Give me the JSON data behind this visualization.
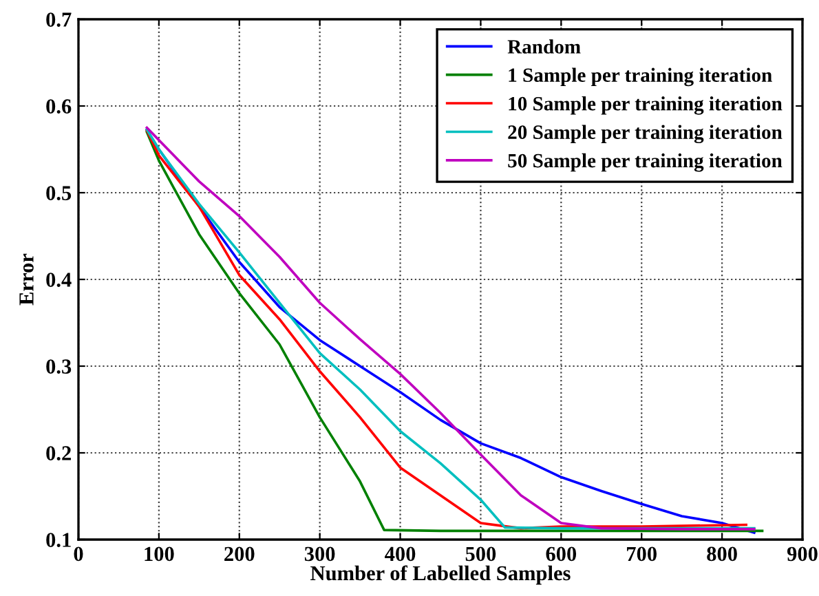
{
  "chart_data": {
    "type": "line",
    "xlabel": "Number of Labelled Samples",
    "ylabel": "Error",
    "xlim": [
      0,
      900
    ],
    "xticks": [
      0,
      100,
      200,
      300,
      400,
      500,
      600,
      700,
      800,
      900
    ],
    "ylim": [
      0.1,
      0.7
    ],
    "yticks": [
      0.1,
      0.2,
      0.3,
      0.4,
      0.5,
      0.6,
      0.7
    ],
    "grid": true,
    "legend": "top right",
    "line_style": "solid",
    "marker": "none",
    "series": [
      {
        "name": "Random",
        "color": "#0000ff",
        "x": [
          85,
          100,
          150,
          200,
          250,
          300,
          350,
          400,
          450,
          500,
          550,
          600,
          650,
          700,
          750,
          800,
          840
        ],
        "values": [
          0.572,
          0.55,
          0.484,
          0.42,
          0.368,
          0.33,
          0.3,
          0.27,
          0.238,
          0.211,
          0.194,
          0.172,
          0.156,
          0.141,
          0.127,
          0.119,
          0.108
        ]
      },
      {
        "name": "1 Sample per training iteration",
        "color": "#008000",
        "x": [
          85,
          100,
          150,
          200,
          250,
          300,
          350,
          380,
          450,
          550,
          650,
          750,
          850
        ],
        "values": [
          0.57,
          0.537,
          0.452,
          0.384,
          0.325,
          0.241,
          0.167,
          0.111,
          0.11,
          0.11,
          0.11,
          0.11,
          0.11
        ]
      },
      {
        "name": "10 Sample per training iteration",
        "color": "#ff0000",
        "x": [
          85,
          100,
          150,
          200,
          250,
          300,
          350,
          400,
          450,
          500,
          550,
          600,
          700,
          830
        ],
        "values": [
          0.572,
          0.543,
          0.484,
          0.405,
          0.354,
          0.294,
          0.241,
          0.183,
          0.151,
          0.119,
          0.113,
          0.115,
          0.115,
          0.117
        ]
      },
      {
        "name": "20 Sample per training iteration",
        "color": "#00bfbf",
        "x": [
          85,
          100,
          150,
          200,
          250,
          300,
          350,
          400,
          450,
          500,
          530,
          600,
          700,
          840
        ],
        "values": [
          0.573,
          0.55,
          0.487,
          0.431,
          0.373,
          0.315,
          0.273,
          0.225,
          0.188,
          0.146,
          0.114,
          0.113,
          0.113,
          0.113
        ]
      },
      {
        "name": "50 Sample per training iteration",
        "color": "#bf00bf",
        "x": [
          85,
          150,
          200,
          250,
          300,
          350,
          400,
          450,
          500,
          550,
          600,
          650,
          750,
          840
        ],
        "values": [
          0.575,
          0.513,
          0.473,
          0.426,
          0.373,
          0.331,
          0.291,
          0.246,
          0.198,
          0.151,
          0.119,
          0.113,
          0.112,
          0.112
        ]
      }
    ]
  }
}
